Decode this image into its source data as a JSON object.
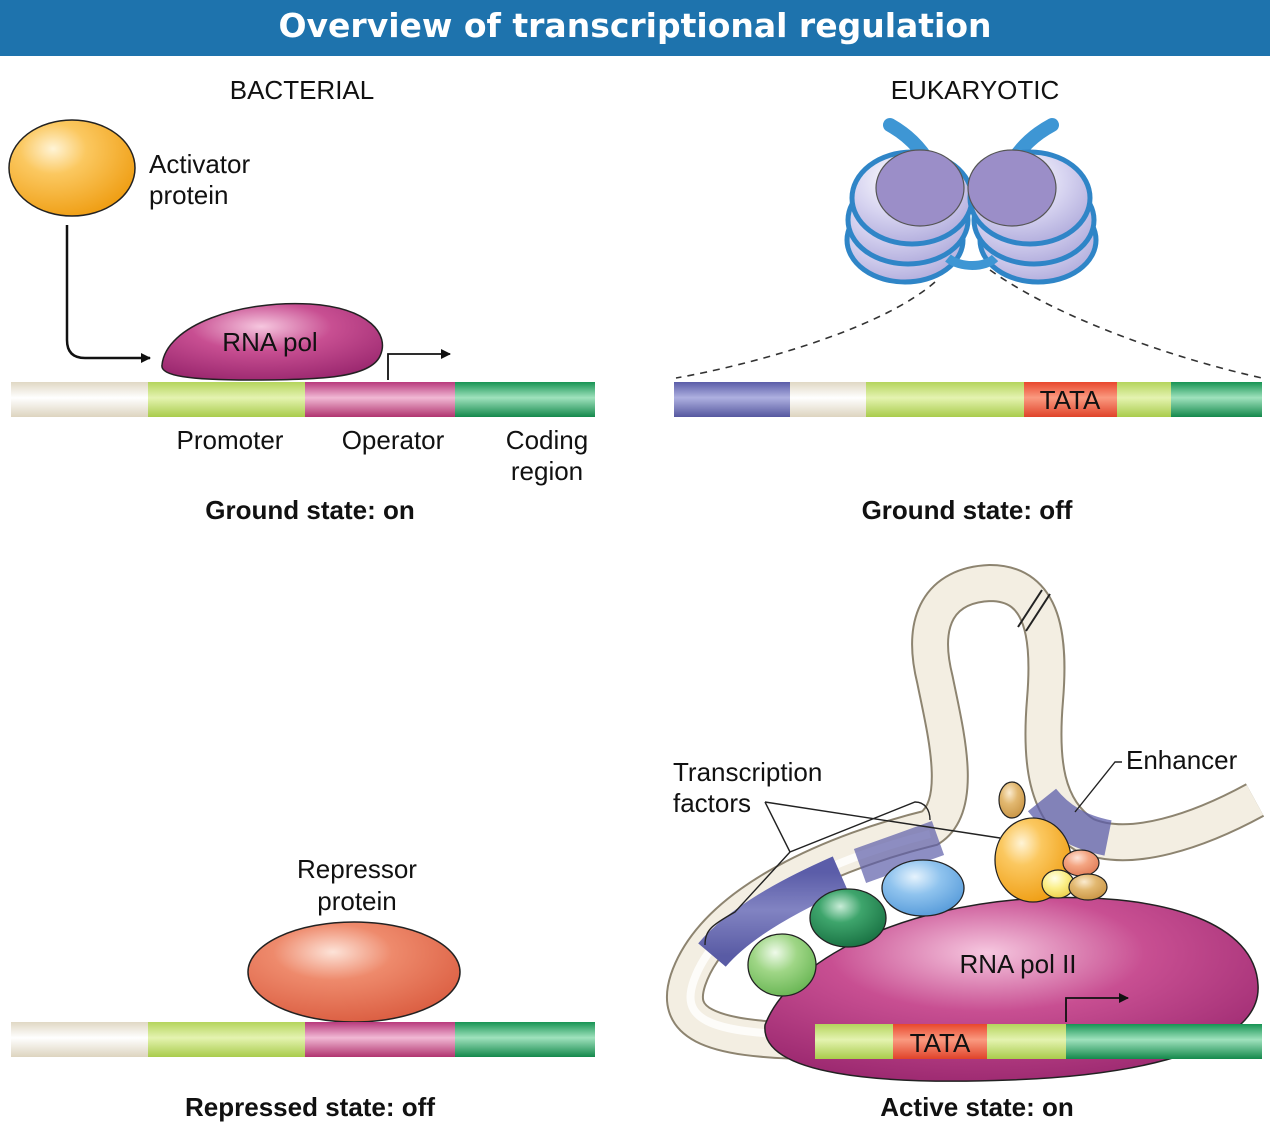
{
  "title": "Overview of transcriptional regulation",
  "columns": {
    "bacterial": "BACTERIAL",
    "eukaryotic": "EUKARYOTIC"
  },
  "bacterial": {
    "activator_label_1": "Activator",
    "activator_label_2": "protein",
    "rna_pol": "RNA pol",
    "promoter": "Promoter",
    "operator": "Operator",
    "coding_1": "Coding",
    "coding_2": "region",
    "ground_state": "Ground state: on",
    "repressor_label_1": "Repressor",
    "repressor_label_2": "protein",
    "repressed_state": "Repressed state: off"
  },
  "eukaryotic": {
    "tata": "TATA",
    "ground_state": "Ground state: off",
    "transcription_factors_1": "Transcription",
    "transcription_factors_2": "factors",
    "enhancer": "Enhancer",
    "rna_pol_ii": "RNA pol II",
    "active_state": "Active state: on"
  },
  "colors": {
    "header": "#1e73ad",
    "beige": "#efe9dc",
    "promoter": "#c5e07a",
    "operator": "#c94e8a",
    "coding": "#2aa665",
    "enhancer": "#6e6fb5",
    "tata": "#ef5b3c",
    "activator": "#f6aa24",
    "rna_pol": "#a12e78",
    "repressor": "#e36a4e"
  }
}
